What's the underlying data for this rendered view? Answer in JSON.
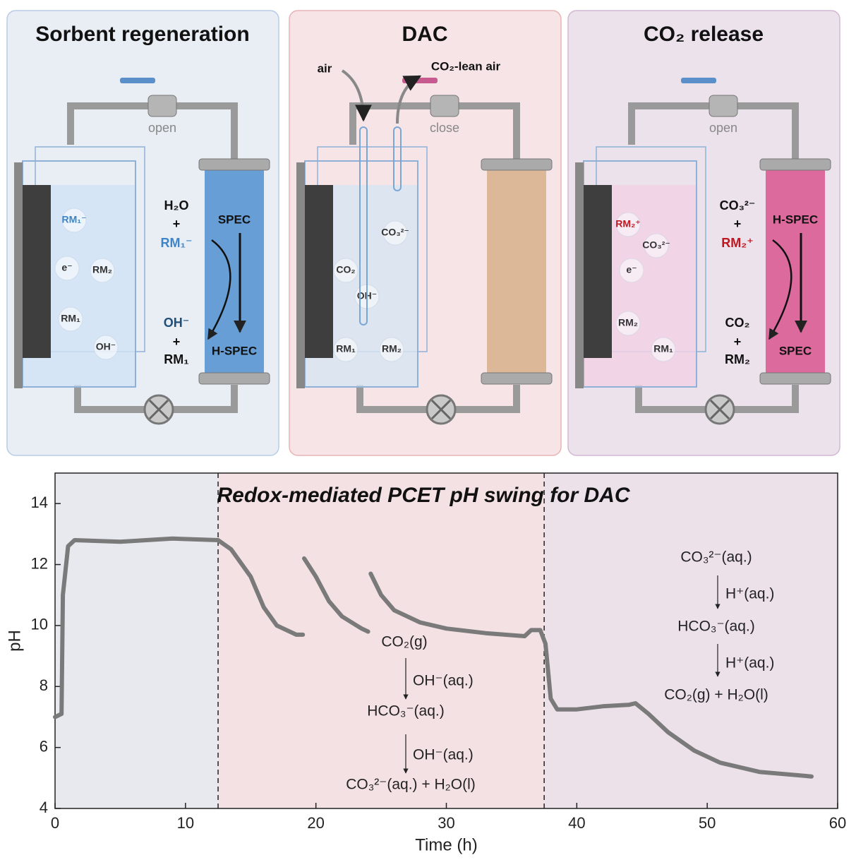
{
  "panels": [
    {
      "title": "Sorbent regeneration",
      "valve": "open",
      "bubbles": [
        "RM₁⁻",
        "e⁻",
        "RM₂",
        "RM₁",
        "OH⁻"
      ],
      "reaction": [
        "H₂O",
        "+",
        "RM₁⁻",
        "OH⁻",
        "+",
        "RM₁"
      ],
      "column_top": "SPEC",
      "column_bottom": "H-SPEC"
    },
    {
      "title": "DAC",
      "valve": "close",
      "inlet": "air",
      "outlet": "CO₂-lean air",
      "bubbles": [
        "CO₃²⁻",
        "CO₂",
        "OH⁻",
        "RM₁",
        "RM₂"
      ]
    },
    {
      "title": "CO₂ release",
      "valve": "open",
      "bubbles": [
        "RM₂⁺",
        "CO₃²⁻",
        "e⁻",
        "RM₂",
        "RM₁"
      ],
      "reaction": [
        "CO₃²⁻",
        "+",
        "RM₂⁺",
        "CO₂",
        "+",
        "RM₂"
      ],
      "column_top": "H-SPEC",
      "column_bottom": "SPEC"
    }
  ],
  "chart_data": {
    "type": "line",
    "title": "Redox-mediated PCET pH swing for DAC",
    "x_label": "Time (h)",
    "y_label": "pH",
    "x": [
      0,
      0.5,
      0.6,
      1.0,
      1.5,
      5,
      9,
      12.5,
      13.5,
      15,
      16,
      17,
      18.5,
      19,
      19.05,
      19.1,
      20,
      21,
      22,
      23.5,
      24,
      24.1,
      24.2,
      25,
      26,
      28,
      30,
      33,
      36,
      36.5,
      37.2,
      37.6,
      38,
      38.5,
      40,
      42,
      44,
      44.5,
      45.5,
      47,
      49,
      51,
      54,
      58
    ],
    "series": [
      {
        "name": "pH",
        "color": "#7a7a7a",
        "values": [
          7.0,
          7.1,
          11.0,
          12.6,
          12.8,
          12.75,
          12.85,
          12.8,
          12.5,
          11.6,
          10.6,
          10.0,
          9.7,
          9.7,
          null,
          12.2,
          11.6,
          10.8,
          10.3,
          9.9,
          9.8,
          null,
          11.7,
          11.0,
          10.5,
          10.1,
          9.9,
          9.75,
          9.65,
          9.85,
          9.85,
          9.4,
          7.6,
          7.25,
          7.25,
          7.35,
          7.4,
          7.45,
          7.1,
          6.5,
          5.9,
          5.5,
          5.2,
          5.05
        ]
      }
    ],
    "xlim": [
      0,
      60
    ],
    "ylim": [
      4,
      15
    ],
    "xticks": [
      0,
      10,
      20,
      30,
      40,
      50,
      60
    ],
    "yticks": [
      4,
      6,
      8,
      10,
      12,
      14
    ],
    "regions": [
      {
        "from": 0,
        "to": 12.5,
        "color": "#e8e9ef"
      },
      {
        "from": 12.5,
        "to": 37.5,
        "color": "#f4e1e4"
      },
      {
        "from": 37.5,
        "to": 60,
        "color": "#ece1e9"
      }
    ],
    "annotations": [
      "CO₂(g)",
      "OH⁻(aq.)",
      "HCO₃⁻(aq.)",
      "OH⁻(aq.)",
      "CO₃²⁻(aq.) + H₂O(l)",
      "CO₃²⁻(aq.)",
      "H⁺(aq.)",
      "HCO₃⁻(aq.)",
      "H⁺(aq.)",
      "CO₂(g) + H₂O(l)"
    ]
  }
}
